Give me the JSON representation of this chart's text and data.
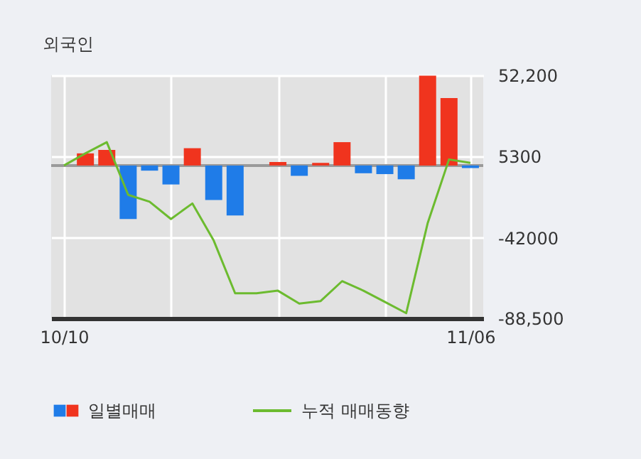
{
  "chart_data": {
    "type": "bar",
    "title": "외국인",
    "categories": [
      "10/10",
      null,
      null,
      null,
      null,
      null,
      null,
      null,
      null,
      null,
      null,
      null,
      null,
      null,
      null,
      null,
      null,
      null,
      null,
      "11/06"
    ],
    "series": [
      {
        "name": "일별매매",
        "colors": [
          "#f0341e",
          "#f0341e",
          "#f0341e",
          "#1f7ce8",
          "#1f7ce8",
          "#1f7ce8",
          "#f0341e",
          "#1f7ce8",
          "#1f7ce8",
          "#f0341e",
          "#f0341e",
          "#1f7ce8",
          "#f0341e",
          "#f0341e",
          "#1f7ce8",
          "#1f7ce8",
          "#1f7ce8",
          "#f0341e",
          "#f0341e",
          "#1f7ce8"
        ],
        "values": [
          0,
          7000,
          9000,
          -31000,
          -3000,
          -11000,
          10000,
          -20000,
          -29000,
          0,
          2000,
          -6000,
          1500,
          13500,
          -4500,
          -5000,
          -8000,
          52000,
          39000,
          -1500
        ]
      },
      {
        "name": "누적 매매동향",
        "type": "line",
        "color": "#6cbb2f",
        "values": [
          0,
          7000,
          13500,
          -17000,
          -21000,
          -31000,
          -22000,
          -43500,
          -74000,
          -74000,
          -72500,
          -80000,
          -78500,
          -67000,
          -72500,
          -79000,
          -85500,
          -33500,
          3500,
          1500
        ]
      }
    ],
    "ylim": [
      -88500,
      52200
    ],
    "yticks": [
      {
        "value": 52200,
        "label": "52,200"
      },
      5300,
      -42000,
      {
        "value": -88500,
        "label": "-88,500"
      }
    ],
    "ref_lines": [
      {
        "axis": "y",
        "value": 0,
        "color": "#9a9a9a"
      }
    ],
    "grid": true,
    "legend": "bottom left"
  }
}
